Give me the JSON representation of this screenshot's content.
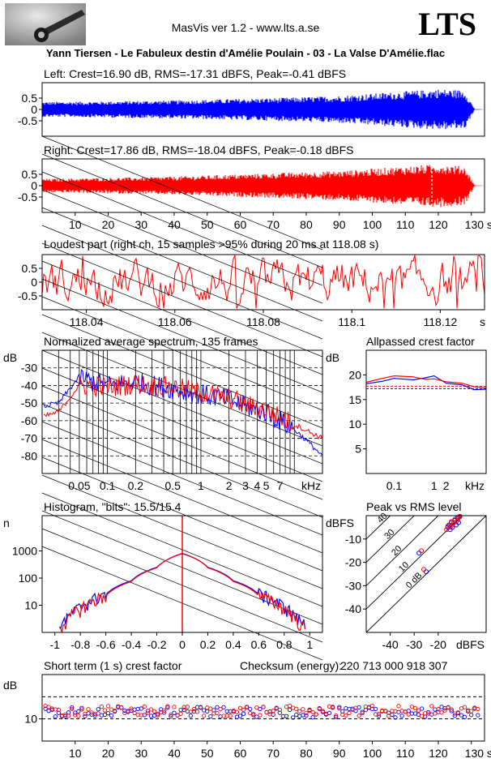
{
  "header": {
    "app_title": "MasVis ver 1.2 - www.lts.a.se",
    "brand": "LTS",
    "track_title": "Yann Tiersen - Le Fabuleux destin d'Amélie Poulain - 03 - La Valse D'Amélie.flac"
  },
  "colors": {
    "left": "#0000ff",
    "right": "#ff0000",
    "axis": "#000000",
    "background": "#ffffff"
  },
  "chart_data": [
    {
      "type": "area",
      "title": "Left: Crest=16.90 dB, RMS=-17.31 dBFS, Peak=-0.41 dBFS",
      "y_ticks": [
        "0.5",
        "0",
        "-0.5"
      ],
      "ylim": [
        -1,
        1
      ],
      "xlim": [
        0,
        134
      ],
      "envelope": {
        "x": [
          0,
          10,
          20,
          30,
          40,
          50,
          60,
          70,
          80,
          90,
          100,
          110,
          120,
          128,
          131,
          134
        ],
        "amp": [
          0.33,
          0.34,
          0.36,
          0.38,
          0.4,
          0.43,
          0.47,
          0.5,
          0.55,
          0.6,
          0.7,
          0.8,
          0.9,
          0.85,
          0.02,
          0.0
        ]
      },
      "color": "#0000ff"
    },
    {
      "type": "area",
      "title": "Right: Crest=17.86 dB, RMS=-18.04 dBFS, Peak=-0.18 dBFS",
      "y_ticks": [
        "0.5",
        "0",
        "-0.5"
      ],
      "ylim": [
        -1,
        1
      ],
      "xlim": [
        0,
        134
      ],
      "x_ticks": [
        "10",
        "20",
        "30",
        "40",
        "50",
        "60",
        "70",
        "80",
        "90",
        "100",
        "110",
        "120",
        "130 s"
      ],
      "envelope": {
        "x": [
          0,
          10,
          20,
          30,
          40,
          50,
          60,
          70,
          80,
          90,
          100,
          110,
          120,
          128,
          131,
          134
        ],
        "amp": [
          0.3,
          0.32,
          0.35,
          0.37,
          0.4,
          0.45,
          0.5,
          0.55,
          0.6,
          0.65,
          0.75,
          0.85,
          0.95,
          0.85,
          0.02,
          0.0
        ]
      },
      "marker_x": 118.08,
      "color": "#ff0000"
    },
    {
      "type": "line",
      "title": "Loudest part (right ch, 15 samples >95% during 20 ms at 118.08 s)",
      "y_ticks": [
        "0.5",
        "0",
        "-0.5"
      ],
      "ylim": [
        -1,
        1
      ],
      "xlim": [
        118.03,
        118.13
      ],
      "x_ticks": [
        "118.04",
        "118.06",
        "118.08",
        "118.1",
        "118.12",
        "s"
      ],
      "color": "#ff0000"
    },
    {
      "type": "line",
      "title": "Normalized average spectrum, 135 frames",
      "ylabel": "dB",
      "y_ticks": [
        "-30",
        "-40",
        "-50",
        "-60",
        "-70",
        "-80"
      ],
      "ylim": [
        -90,
        -20
      ],
      "x_ticks": [
        "0.05",
        "0.1",
        "0.2",
        "0.5",
        "1",
        "2",
        "3",
        "4",
        "5",
        "7",
        "kHz"
      ],
      "x_log": true,
      "xlim_khz": [
        0.02,
        20
      ],
      "series": [
        {
          "color": "#0000ff",
          "x": [
            0.02,
            0.03,
            0.05,
            0.07,
            0.1,
            0.2,
            0.5,
            1,
            2,
            3,
            5,
            7,
            10,
            14,
            20
          ],
          "y": [
            -52,
            -50,
            -35,
            -38,
            -40,
            -38,
            -42,
            -45,
            -48,
            -52,
            -55,
            -60,
            -65,
            -72,
            -80
          ]
        },
        {
          "color": "#ff0000",
          "x": [
            0.02,
            0.03,
            0.05,
            0.07,
            0.1,
            0.2,
            0.5,
            1,
            2,
            3,
            5,
            7,
            10,
            14,
            20
          ],
          "y": [
            -58,
            -55,
            -40,
            -40,
            -41,
            -39,
            -41,
            -44,
            -47,
            -51,
            -54,
            -58,
            -62,
            -66,
            -70
          ]
        }
      ]
    },
    {
      "type": "line",
      "title": "Allpassed crest factor",
      "ylabel": "dB",
      "y_ticks": [
        "20",
        "15",
        "10",
        "5"
      ],
      "ylim": [
        0,
        25
      ],
      "x_ticks": [
        "0.1",
        "1",
        "2",
        "kHz"
      ],
      "x_log": true,
      "series": [
        {
          "color": "#0000ff",
          "x": [
            0.02,
            0.05,
            0.1,
            0.3,
            0.6,
            1,
            2,
            5,
            10,
            20
          ],
          "y": [
            18.2,
            18.7,
            19.3,
            19.0,
            19.4,
            19.8,
            18.3,
            18.0,
            17.0,
            17.1
          ]
        },
        {
          "color": "#ff0000",
          "x": [
            0.02,
            0.05,
            0.1,
            0.3,
            0.6,
            1,
            2,
            5,
            10,
            20
          ],
          "y": [
            18.5,
            19.3,
            19.8,
            19.6,
            19.1,
            19.2,
            18.6,
            18.3,
            17.6,
            17.4
          ]
        }
      ]
    },
    {
      "type": "line",
      "title": "Histogram, \"bits\": 15.5/15.4",
      "ylabel": "n",
      "y_ticks": [
        "1000",
        "100",
        "10"
      ],
      "y_log": true,
      "xlim": [
        -1.1,
        1.1
      ],
      "x_ticks": [
        "-1",
        "-0.8",
        "-0.6",
        "-0.4",
        "-0.2",
        "0",
        "0.2",
        "0.4",
        "0.6",
        "0.8",
        "1"
      ],
      "x": [
        -0.95,
        -0.9,
        -0.8,
        -0.7,
        -0.6,
        -0.4,
        -0.2,
        0,
        0.2,
        0.4,
        0.6,
        0.7,
        0.8,
        0.9,
        0.95
      ],
      "series": [
        {
          "color": "#0000ff",
          "y": [
            2,
            3,
            8,
            15,
            25,
            80,
            250,
            800,
            250,
            80,
            25,
            15,
            8,
            3,
            2
          ]
        },
        {
          "color": "#ff0000",
          "y": [
            1.5,
            2.5,
            7,
            13,
            22,
            75,
            240,
            820,
            240,
            75,
            22,
            13,
            7,
            2.5,
            1.5
          ]
        }
      ]
    },
    {
      "type": "scatter",
      "title": "Peak vs RMS level",
      "ylabel": "dBFS",
      "xlabel": "dBFS",
      "y_ticks": [
        "-10",
        "-20",
        "-30",
        "-40"
      ],
      "x_ticks": [
        "-40",
        "-30",
        "-20"
      ],
      "xlim": [
        -50,
        0
      ],
      "ylim": [
        -50,
        0
      ],
      "diagonal_labels": [
        "40",
        "30",
        "20",
        "10",
        "0 dB"
      ],
      "series": [
        {
          "color": "#0000ff",
          "x": [
            -16,
            -15.5,
            -15,
            -14.5,
            -14,
            -13,
            -12.5,
            -12,
            -11.5,
            -11,
            -28,
            -25
          ],
          "y": [
            -5,
            -4,
            -6,
            -3,
            -5,
            -2,
            -4,
            -1,
            -3,
            -0.5,
            -16,
            -24
          ]
        },
        {
          "color": "#ff0000",
          "x": [
            -16.5,
            -16,
            -15,
            -14.5,
            -14,
            -13.5,
            -13,
            -12,
            -11.5,
            -11,
            -27,
            -26
          ],
          "y": [
            -6,
            -4.5,
            -5,
            -2.5,
            -4,
            -3,
            -1.5,
            -2,
            -1,
            -0.3,
            -15,
            -23
          ]
        }
      ]
    },
    {
      "type": "scatter",
      "title": "Short term (1 s) crest factor",
      "ylabel": "dB",
      "y_ticks": [
        "10"
      ],
      "ylim": [
        0,
        30
      ],
      "dashed_levels": [
        20,
        10
      ],
      "x_ticks": [
        "10",
        "20",
        "30",
        "40",
        "50",
        "60",
        "70",
        "80",
        "90",
        "100",
        "110",
        "120",
        "130 s"
      ],
      "xlim": [
        0,
        134
      ],
      "checksum_label": "Checksum (energy):",
      "checksum_value": "220 713 000 918 307",
      "series": [
        {
          "color": "#0000ff",
          "mean": 13,
          "spread": 3
        },
        {
          "color": "#ff0000",
          "mean": 13.5,
          "spread": 3
        }
      ]
    }
  ]
}
